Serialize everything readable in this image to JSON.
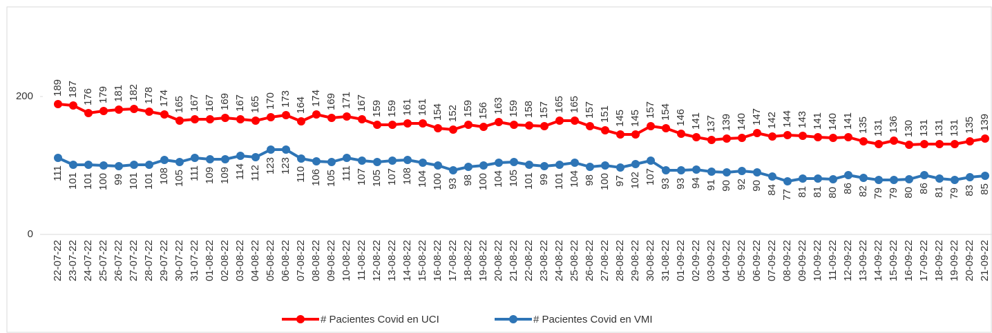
{
  "chart_data": {
    "type": "line",
    "categories": [
      "22-07-22",
      "23-07-22",
      "24-07-22",
      "25-07-22",
      "26-07-22",
      "27-07-22",
      "28-07-22",
      "29-07-22",
      "30-07-22",
      "31-07-22",
      "01-08-22",
      "02-08-22",
      "03-08-22",
      "04-08-22",
      "05-08-22",
      "06-08-22",
      "07-08-22",
      "08-08-22",
      "09-08-22",
      "10-08-22",
      "11-08-22",
      "12-08-22",
      "13-08-22",
      "14-08-22",
      "15-08-22",
      "16-08-22",
      "17-08-22",
      "18-08-22",
      "19-08-22",
      "20-08-22",
      "21-08-22",
      "22-08-22",
      "23-08-22",
      "24-08-22",
      "25-08-22",
      "26-08-22",
      "27-08-22",
      "28-08-22",
      "29-08-22",
      "30-08-22",
      "31-08-22",
      "01-09-22",
      "02-09-22",
      "03-09-22",
      "04-09-22",
      "05-09-22",
      "06-09-22",
      "07-09-22",
      "08-09-22",
      "09-09-22",
      "10-09-22",
      "11-09-22",
      "12-09-22",
      "13-09-22",
      "14-09-22",
      "15-09-22",
      "16-09-22",
      "17-09-22",
      "18-09-22",
      "19-09-22",
      "20-09-22",
      "21-09-22"
    ],
    "series": [
      {
        "name": "# Pacientes Covid en UCI",
        "color": "#ff0000",
        "values": [
          189,
          187,
          176,
          179,
          181,
          182,
          178,
          174,
          165,
          167,
          167,
          169,
          167,
          165,
          170,
          173,
          164,
          174,
          169,
          171,
          167,
          159,
          159,
          161,
          161,
          154,
          152,
          159,
          156,
          163,
          159,
          158,
          157,
          165,
          165,
          157,
          151,
          145,
          145,
          157,
          154,
          146,
          141,
          137,
          139,
          140,
          147,
          142,
          144,
          143,
          141,
          140,
          141,
          135,
          131,
          136,
          130,
          131,
          131,
          131,
          135,
          139
        ]
      },
      {
        "name": "# Pacientes Covid en VMI",
        "color": "#2e75b6",
        "values": [
          111,
          101,
          101,
          100,
          99,
          101,
          101,
          108,
          105,
          111,
          109,
          109,
          114,
          112,
          123,
          123,
          110,
          106,
          105,
          111,
          107,
          105,
          107,
          108,
          104,
          100,
          93,
          98,
          100,
          104,
          105,
          101,
          99,
          101,
          104,
          98,
          100,
          97,
          102,
          107,
          93,
          93,
          94,
          91,
          90,
          92,
          90,
          84,
          77,
          81,
          81,
          80,
          86,
          82,
          79,
          79,
          80,
          86,
          81,
          79,
          83,
          85
        ]
      }
    ],
    "ylim": [
      0,
      300
    ],
    "yticks": [
      0,
      200
    ]
  }
}
